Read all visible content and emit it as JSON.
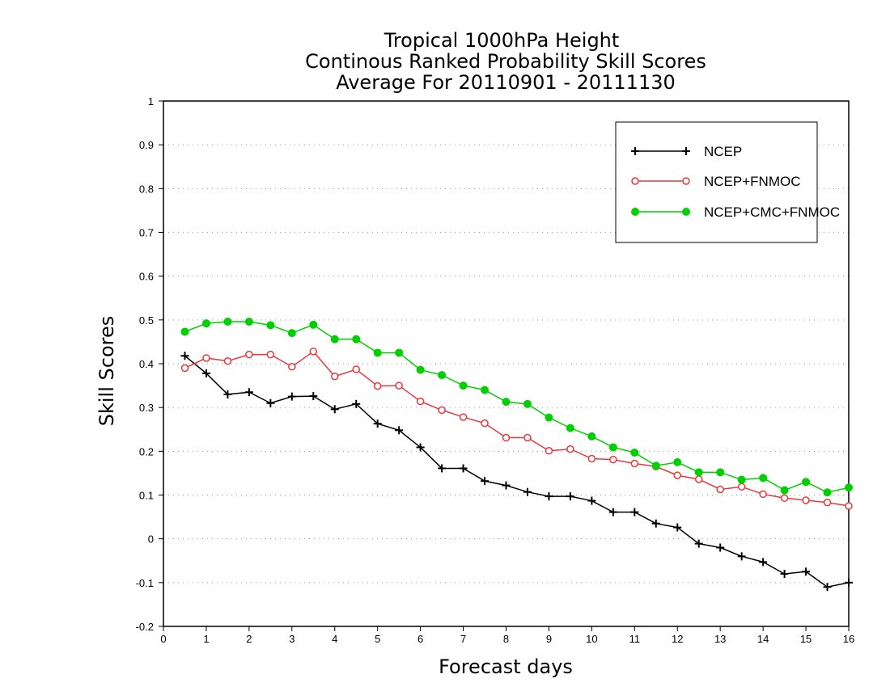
{
  "chart_data": {
    "type": "line",
    "title_lines": [
      "Tropical 1000hPa Height",
      "Continous Ranked Probability Skill Scores",
      "Average For 20110901 - 20111130"
    ],
    "xlabel": "Forecast days",
    "ylabel": "Skill Scores",
    "xlim": [
      0,
      16
    ],
    "ylim": [
      -0.2,
      1
    ],
    "x_ticks": [
      0,
      1,
      2,
      3,
      4,
      5,
      6,
      7,
      8,
      9,
      10,
      11,
      12,
      13,
      14,
      15,
      16
    ],
    "x_tick_labels": [
      "0",
      "1",
      "2",
      "3",
      "4",
      "5",
      "6",
      "7",
      "8",
      "9",
      "10",
      "11",
      "12",
      "13",
      "14",
      "15",
      "16"
    ],
    "y_ticks": [
      -0.2,
      -0.1,
      0,
      0.1,
      0.2,
      0.3,
      0.4,
      0.5,
      0.6,
      0.7,
      0.8,
      0.9,
      1
    ],
    "y_tick_labels": [
      "-0.2",
      "-0.1",
      "0",
      "0.1",
      "0.2",
      "0.3",
      "0.4",
      "0.5",
      "0.6",
      "0.7",
      "0.8",
      "0.9",
      "1"
    ],
    "grid": "horizontal dotted",
    "legend_position": "top-right",
    "x": [
      0.5,
      1,
      1.5,
      2,
      2.5,
      3,
      3.5,
      4,
      4.5,
      5,
      5.5,
      6,
      6.5,
      7,
      7.5,
      8,
      8.5,
      9,
      9.5,
      10,
      10.5,
      11,
      11.5,
      12,
      12.5,
      13,
      13.5,
      14,
      14.5,
      15,
      15.5,
      16
    ],
    "series": [
      {
        "name": "NCEP",
        "color": "#000000",
        "marker": "plus",
        "values": [
          0.418,
          0.378,
          0.33,
          0.335,
          0.31,
          0.325,
          0.326,
          0.296,
          0.308,
          0.263,
          0.248,
          0.209,
          0.161,
          0.161,
          0.132,
          0.122,
          0.107,
          0.097,
          0.097,
          0.087,
          0.061,
          0.061,
          0.035,
          0.026,
          -0.011,
          -0.02,
          -0.04,
          -0.053,
          -0.08,
          -0.075,
          -0.11,
          -0.1
        ]
      },
      {
        "name": "NCEP+FNMOC",
        "color": "#e8383d",
        "marker": "open-circle",
        "values": [
          0.39,
          0.413,
          0.406,
          0.421,
          0.421,
          0.393,
          0.428,
          0.371,
          0.387,
          0.349,
          0.35,
          0.314,
          0.294,
          0.278,
          0.264,
          0.231,
          0.231,
          0.201,
          0.205,
          0.183,
          0.181,
          0.172,
          0.165,
          0.145,
          0.136,
          0.113,
          0.119,
          0.102,
          0.093,
          0.088,
          0.083,
          0.075
        ]
      },
      {
        "name": "NCEP+CMC+FNMOC",
        "color": "#00d000",
        "marker": "filled-circle",
        "values": [
          0.473,
          0.492,
          0.496,
          0.496,
          0.488,
          0.47,
          0.489,
          0.456,
          0.456,
          0.425,
          0.425,
          0.386,
          0.374,
          0.35,
          0.34,
          0.313,
          0.308,
          0.277,
          0.253,
          0.234,
          0.209,
          0.197,
          0.167,
          0.175,
          0.152,
          0.152,
          0.135,
          0.139,
          0.111,
          0.13,
          0.106,
          0.117
        ]
      }
    ]
  }
}
